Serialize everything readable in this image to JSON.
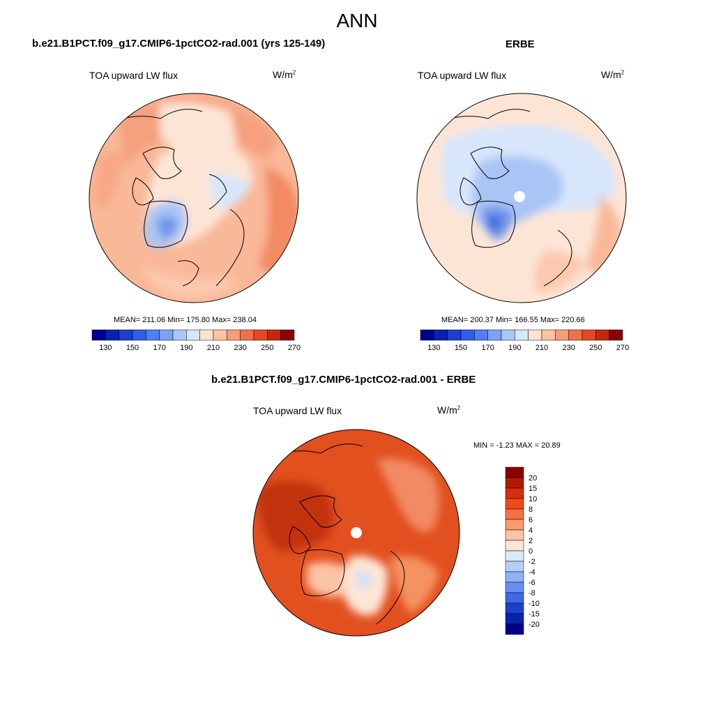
{
  "main_title": "ANN",
  "panels": [
    {
      "title": "b.e21.B1PCT.f09_g17.CMIP6-1pctCO2-rad.001 (yrs 125-149)",
      "variable": "TOA upward LW flux",
      "units_base": "W/m",
      "units_exp": "2",
      "stats": "MEAN= 211.06  Min= 175.80  Max= 238.04",
      "colorbar_labels": [
        "130",
        "150",
        "170",
        "190",
        "210",
        "230",
        "250",
        "270"
      ]
    },
    {
      "title": "ERBE",
      "variable": "TOA upward LW flux",
      "units_base": "W/m",
      "units_exp": "2",
      "stats": "MEAN= 200.37  Min= 166.55  Max= 220.66",
      "colorbar_labels": [
        "130",
        "150",
        "170",
        "190",
        "210",
        "230",
        "250",
        "270"
      ]
    },
    {
      "title": "b.e21.B1PCT.f09_g17.CMIP6-1pctCO2-rad.001 - ERBE",
      "variable": "TOA upward LW flux",
      "units_base": "W/m",
      "units_exp": "2",
      "stats": "MIN =  -1.23 MAX =  20.89",
      "colorbar_labels": [
        "20",
        "15",
        "10",
        "8",
        "6",
        "4",
        "2",
        "0",
        "-2",
        "-4",
        "-6",
        "-8",
        "-10",
        "-15",
        "-20"
      ]
    }
  ],
  "colors": {
    "field_scale": [
      "#00008b",
      "#0a20b0",
      "#1a3fd1",
      "#2f5fe6",
      "#4f7ff0",
      "#7aa2f6",
      "#a8c6fa",
      "#d6e6fc",
      "#fde2d0",
      "#fbc3a3",
      "#f79d78",
      "#f07149",
      "#e24a22",
      "#c22a0f",
      "#8b0000"
    ],
    "diff_scale": [
      "#8b0000",
      "#b01a05",
      "#d3300a",
      "#ee4a1a",
      "#f6703f",
      "#f99a6f",
      "#fcc4a2",
      "#fde6d6",
      "#dce9fb",
      "#b6cff9",
      "#8fb1f6",
      "#6690f2",
      "#3c6ae8",
      "#1a42cf",
      "#0a22a8",
      "#00008b"
    ]
  }
}
